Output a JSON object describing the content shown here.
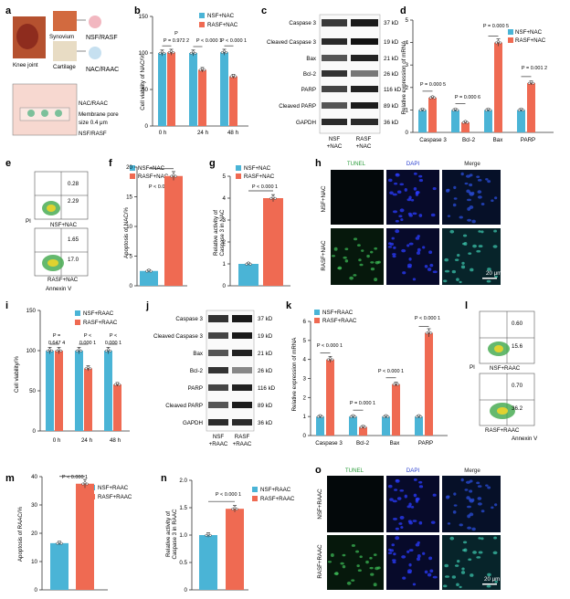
{
  "panels": {
    "a": {
      "letter": "a",
      "knee": "Knee joint",
      "synovium": "Synovium",
      "cartilage": "Cartilage",
      "nsf_rasf": "NSF/RASF",
      "nac_raac": "NAC/RAAC",
      "well_nac": "NAC/RAAC",
      "membrane": "Membrane pore",
      "pore_size": "size 0.4 μm",
      "well_cells": "NSF/RASF"
    },
    "b": {
      "letter": "b",
      "ylabel": "Cell viability of NAC/%",
      "legend": [
        "NSF+NAC",
        "RASF+NAC"
      ],
      "p": [
        "P = 0.972 2",
        "P < 0.000 1",
        "P < 0.000 1"
      ],
      "ylim": [
        0,
        150
      ],
      "yticks": [
        "0",
        "50",
        "100",
        "150"
      ]
    },
    "c": {
      "letter": "c",
      "rows": [
        "Caspase 3",
        "Cleaved Caspase 3",
        "Bax",
        "Bcl-2",
        "PARP",
        "Cleaved PARP",
        "GAPDH"
      ],
      "kd": [
        "37 kD",
        "19 kD",
        "21 kD",
        "26 kD",
        "116 kD",
        "89 kD",
        "36 kD"
      ],
      "cols": [
        "NSF\n+NAC",
        "RASF\n+NAC"
      ],
      "col1a": "NSF",
      "col1b": "+NAC",
      "col2a": "RASF",
      "col2b": "+NAC"
    },
    "d": {
      "letter": "d",
      "ylabel": "Relative expression of mRNA",
      "legend": [
        "NSF+NAC",
        "RASF+NAC"
      ],
      "p": [
        "P = 0.000 5",
        "P = 0.000 6",
        "P = 0.000 5",
        "P = 0.001 2"
      ],
      "ylim": [
        0,
        5
      ],
      "yticks": [
        "0",
        "1",
        "2",
        "3",
        "4",
        "5"
      ]
    },
    "e": {
      "letter": "e",
      "q1": "0.28",
      "q2": "2.29",
      "s1": "NSF+NAC",
      "q3": "1.65",
      "q4": "17.0",
      "s2": "RASF+NAC",
      "pi": "PI",
      "xlabel": "Annexin V"
    },
    "f": {
      "letter": "f",
      "ylabel": "Apoptosis of NAC/%",
      "legend": [
        "NSF+NAC",
        "RASF+NAC"
      ],
      "p": "P < 0.000 1",
      "ylim": [
        0,
        20
      ],
      "yticks": [
        "0",
        "5",
        "10",
        "15",
        "20"
      ]
    },
    "g": {
      "letter": "g",
      "ylabel": "Relative activity of",
      "ylabel2": "Caspase 3 in NAC",
      "legend": [
        "NSF+NAC",
        "RASF+NAC"
      ],
      "p": "P < 0.000 1",
      "ylim": [
        0,
        5
      ],
      "yticks": [
        "0",
        "1",
        "2",
        "3",
        "4",
        "5"
      ]
    },
    "h": {
      "letter": "h",
      "cols": [
        "TUNEL",
        "DAPI",
        "Merge"
      ],
      "rows": [
        "NSF+NAC",
        "RASF+NAC"
      ],
      "scale": "20 μm"
    },
    "i": {
      "letter": "i",
      "ylabel": "Cell viability/%",
      "legend": [
        "NSF+RAAC",
        "RASF+RAAC"
      ],
      "p1a": "P =",
      "p1b": "0.647 4",
      "p2a": "P <",
      "p2b": "0.000 1",
      "p3a": "P <",
      "p3b": "0.000 1",
      "ylim": [
        0,
        150
      ],
      "yticks": [
        "0",
        "50",
        "100",
        "150"
      ]
    },
    "j": {
      "letter": "j",
      "rows": [
        "Caspase 3",
        "Cleaved Caspase 3",
        "Bax",
        "Bcl-2",
        "PARP",
        "Cleaved PARP",
        "GAPDH"
      ],
      "kd": [
        "37 kD",
        "19 kD",
        "21 kD",
        "26 kD",
        "116 kD",
        "89 kD",
        "36 kD"
      ],
      "col1a": "NSF",
      "col1b": "+RAAC",
      "col2a": "RASF",
      "col2b": "+RAAC"
    },
    "k": {
      "letter": "k",
      "ylabel": "Relative expression of mRNA",
      "legend": [
        "NSF+RAAC",
        "RASF+RAAC"
      ],
      "p": [
        "P < 0.000 1",
        "P = 0.000 1",
        "P < 0.000 1",
        "P < 0.000 1"
      ],
      "ylim": [
        0,
        6
      ],
      "yticks": [
        "0",
        "1",
        "2",
        "3",
        "4",
        "5",
        "6"
      ]
    },
    "l": {
      "letter": "l",
      "q1": "0.60",
      "q2": "15.6",
      "s1": "NSF+RAAC",
      "q3": "0.70",
      "q4": "36.2",
      "s2": "RASF+RAAC",
      "pi": "PI",
      "xlabel": "Annexin V"
    },
    "m": {
      "letter": "m",
      "ylabel": "Apoptosis of RAAC/%",
      "legend": [
        "NSF+RAAC",
        "RASF+RAAC"
      ],
      "p": "P < 0.000 1",
      "ylim": [
        0,
        40
      ],
      "yticks": [
        "0",
        "10",
        "20",
        "30",
        "40"
      ]
    },
    "n": {
      "letter": "n",
      "ylabel": "Relative activity of",
      "ylabel2": "Caspase 3 in RAAC",
      "legend": [
        "NSF+RAAC",
        "RASF+RAAC"
      ],
      "p": "P < 0.000 1",
      "ylim": [
        0,
        2
      ],
      "yticks": [
        "0",
        "0.5",
        "1.0",
        "1.5",
        "2.0"
      ]
    },
    "o": {
      "letter": "o",
      "cols": [
        "TUNEL",
        "DAPI",
        "Merge"
      ],
      "rows": [
        "NSF+RAAC",
        "RASF+RAAC"
      ],
      "scale": "20 μm"
    }
  },
  "chart_data": [
    {
      "panel": "b",
      "type": "bar",
      "categories": [
        "0 h",
        "24 h",
        "48 h"
      ],
      "series": [
        {
          "name": "NSF+NAC",
          "values": [
            100,
            100,
            101
          ]
        },
        {
          "name": "RASF+NAC",
          "values": [
            101,
            77,
            68
          ]
        }
      ],
      "ylim": [
        0,
        150
      ],
      "ylabel": "Cell viability of NAC/%"
    },
    {
      "panel": "d",
      "type": "bar",
      "categories": [
        "Caspase 3",
        "Bcl-2",
        "Bax",
        "PARP"
      ],
      "series": [
        {
          "name": "NSF+NAC",
          "values": [
            1,
            1,
            1,
            1
          ]
        },
        {
          "name": "RASF+NAC",
          "values": [
            1.55,
            0.45,
            4.0,
            2.2
          ]
        }
      ],
      "ylim": [
        0,
        5
      ],
      "ylabel": "Relative expression of mRNA"
    },
    {
      "panel": "f",
      "type": "bar",
      "categories": [
        "NSF+NAC",
        "RASF+NAC"
      ],
      "values": [
        2.5,
        18.5
      ],
      "ylim": [
        0,
        20
      ],
      "ylabel": "Apoptosis of NAC/%"
    },
    {
      "panel": "g",
      "type": "bar",
      "categories": [
        "NSF+NAC",
        "RASF+NAC"
      ],
      "values": [
        1.0,
        4.0
      ],
      "ylim": [
        0,
        5
      ],
      "ylabel": "Relative activity of Caspase 3 in NAC"
    },
    {
      "panel": "i",
      "type": "bar",
      "categories": [
        "0 h",
        "24 h",
        "48 h"
      ],
      "series": [
        {
          "name": "NSF+RAAC",
          "values": [
            100,
            100,
            100
          ]
        },
        {
          "name": "RASF+RAAC",
          "values": [
            100,
            78,
            58
          ]
        }
      ],
      "ylim": [
        0,
        150
      ],
      "ylabel": "Cell viability/%"
    },
    {
      "panel": "k",
      "type": "bar",
      "categories": [
        "Caspase 3",
        "Bcl-2",
        "Bax",
        "PARP"
      ],
      "series": [
        {
          "name": "NSF+RAAC",
          "values": [
            1,
            1,
            1,
            1
          ]
        },
        {
          "name": "RASF+RAAC",
          "values": [
            4.0,
            0.45,
            2.7,
            5.4
          ]
        }
      ],
      "ylim": [
        0,
        6
      ],
      "ylabel": "Relative expression of mRNA"
    },
    {
      "panel": "m",
      "type": "bar",
      "categories": [
        "NSF+RAAC",
        "RASF+RAAC"
      ],
      "values": [
        16.5,
        37.5
      ],
      "ylim": [
        0,
        40
      ],
      "ylabel": "Apoptosis of RAAC/%"
    },
    {
      "panel": "n",
      "type": "bar",
      "categories": [
        "NSF+RAAC",
        "RASF+RAAC"
      ],
      "values": [
        1.0,
        1.48
      ],
      "ylim": [
        0,
        2
      ],
      "ylabel": "Relative activity of Caspase 3 in RAAC"
    }
  ],
  "colors": {
    "nsf": "#4ab4d6",
    "rasf": "#ef6a52",
    "blot": "#1e1e1e",
    "micro_bg": "#060814"
  }
}
